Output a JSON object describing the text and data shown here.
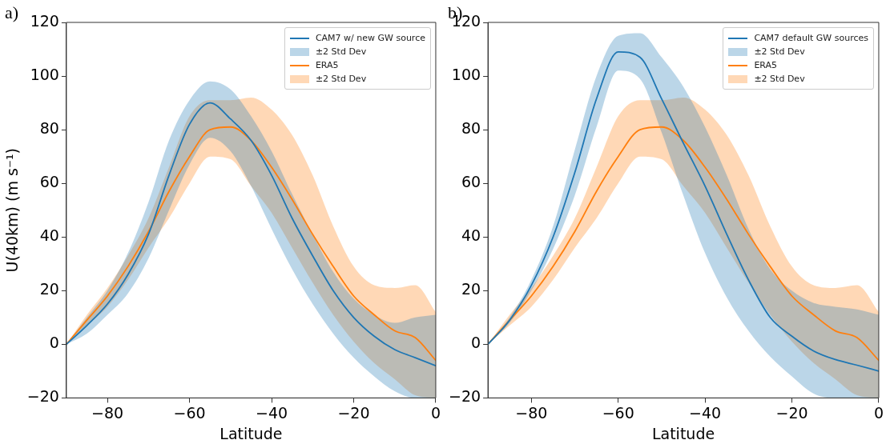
{
  "chart_data": [
    {
      "type": "line",
      "annotations": [
        "a)",
        "±2 Std Dev",
        "±2 Std Dev"
      ],
      "xlabel": "Latitude",
      "ylabel": "U(40km) (m s⁻¹)",
      "legend": "top right",
      "x": [
        -90,
        -85,
        -80,
        -75,
        -70,
        -65,
        -60,
        -55,
        -50,
        -45,
        -40,
        -35,
        -30,
        -25,
        -20,
        -15,
        -10,
        -5,
        0
      ],
      "xlim": [
        -90,
        0
      ],
      "ylim": [
        -20,
        120
      ],
      "xticks": [
        {
          "value": -80,
          "label": "−80"
        },
        {
          "value": -60,
          "label": "−60"
        },
        {
          "value": -40,
          "label": "−40"
        },
        {
          "value": -20,
          "label": "−20"
        },
        0
      ],
      "yticks": [
        {
          "value": -20,
          "label": "−20"
        },
        0,
        20,
        40,
        60,
        80,
        100,
        120
      ],
      "series": [
        {
          "name": "CAM7 w/ new GW source",
          "color": "#1f77b4",
          "values": [
            0,
            7,
            15,
            26,
            41,
            63,
            82,
            90,
            84,
            76,
            63,
            47,
            33,
            20,
            10,
            3,
            -2,
            -5,
            -8
          ],
          "lower": [
            0,
            4,
            11,
            19,
            32,
            50,
            67,
            77,
            72,
            59,
            43,
            28,
            15,
            4,
            -5,
            -12,
            -17.5,
            -20,
            -20
          ],
          "upper": [
            0,
            10,
            20,
            34,
            53,
            76,
            91,
            98,
            95,
            85,
            72,
            56,
            41,
            27,
            17,
            11,
            8,
            10,
            11
          ]
        },
        {
          "name": "ERA5",
          "color": "#ff7f0e",
          "values": [
            0,
            9,
            18,
            29,
            42,
            57,
            70,
            80,
            81,
            76,
            66,
            54,
            41,
            29,
            18,
            11,
            5,
            2.5,
            -6
          ],
          "lower": [
            0,
            7,
            14,
            24,
            36,
            47,
            60,
            70,
            69,
            59,
            49,
            36,
            23,
            11,
            1,
            -7,
            -13,
            -19,
            -20
          ],
          "upper": [
            0,
            11,
            21,
            33,
            47,
            66,
            85,
            91,
            91,
            92,
            87.5,
            78,
            63,
            44,
            29,
            22,
            21,
            22,
            12
          ]
        }
      ]
    },
    {
      "type": "line",
      "annotations": [
        "b)",
        "±2 Std Dev",
        "±2 Std Dev"
      ],
      "xlabel": "Latitude",
      "legend": "top right",
      "x": [
        -90,
        -85,
        -80,
        -75,
        -70,
        -65,
        -60,
        -55,
        -50,
        -45,
        -40,
        -35,
        -30,
        -25,
        -20,
        -15,
        -10,
        -5,
        0
      ],
      "xlim": [
        -90,
        0
      ],
      "ylim": [
        -20,
        120
      ],
      "xticks": [
        {
          "value": -80,
          "label": "−80"
        },
        {
          "value": -60,
          "label": "−60"
        },
        {
          "value": -40,
          "label": "−40"
        },
        {
          "value": -20,
          "label": "−20"
        },
        0
      ],
      "yticks": [
        {
          "value": -20,
          "label": "−20"
        },
        0,
        20,
        40,
        60,
        80,
        100,
        120
      ],
      "series": [
        {
          "name": "CAM7 default GW sources",
          "color": "#1f77b4",
          "values": [
            0,
            9,
            22,
            40,
            64,
            91.5,
            109,
            107,
            91.5,
            75,
            59,
            41,
            24,
            10,
            3,
            -2.5,
            -5.7,
            -7.8,
            -10
          ],
          "lower": [
            0,
            8,
            20,
            35.5,
            55.5,
            81,
            102,
            99,
            79,
            55.5,
            34,
            17.5,
            5,
            -4.6,
            -12,
            -18.4,
            -20,
            -20,
            -20
          ],
          "upper": [
            0,
            10,
            24,
            44,
            72.5,
            100,
            115,
            116,
            107,
            96,
            81,
            63,
            43,
            28,
            20,
            15.4,
            14,
            13,
            11
          ]
        },
        {
          "name": "ERA5",
          "color": "#ff7f0e",
          "values": [
            0,
            9,
            18,
            29,
            42,
            57,
            70,
            80,
            81,
            76,
            66,
            54,
            41,
            29,
            18,
            11,
            5,
            2.5,
            -6
          ],
          "lower": [
            0,
            7,
            14,
            24,
            36,
            47,
            60,
            70,
            69,
            59,
            49,
            36,
            23,
            11,
            1,
            -7,
            -13,
            -19,
            -20
          ],
          "upper": [
            0,
            11,
            21,
            33,
            47,
            66,
            85,
            91,
            91,
            92,
            87.5,
            78,
            63,
            44,
            29,
            22,
            21,
            22,
            12
          ]
        }
      ]
    }
  ]
}
